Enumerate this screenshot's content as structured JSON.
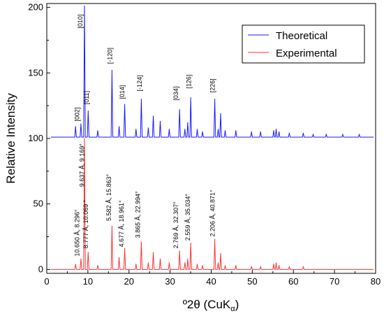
{
  "chart_data": {
    "type": "line",
    "xlabel_main": "º2θ (CuK",
    "xlabel_sub": "α",
    "xlabel_close": ")",
    "ylabel": "Relative Intensity",
    "xlim": [
      0,
      80
    ],
    "ylim": [
      -3,
      203
    ],
    "x_ticks": [
      0,
      10,
      20,
      30,
      40,
      50,
      60,
      70,
      80
    ],
    "y_ticks": [
      0,
      50,
      100,
      150,
      200
    ],
    "grid": false,
    "legend_position": "top-right",
    "series": [
      {
        "name": "Theoretical",
        "color": "#1a1aff",
        "baseline": 101,
        "peaks": [
          {
            "x": 7.0,
            "h": 8
          },
          {
            "x": 8.3,
            "h": 10
          },
          {
            "x": 9.17,
            "h": 100
          },
          {
            "x": 10.07,
            "h": 20
          },
          {
            "x": 12.4,
            "h": 5
          },
          {
            "x": 15.86,
            "h": 51
          },
          {
            "x": 17.6,
            "h": 8
          },
          {
            "x": 18.96,
            "h": 25
          },
          {
            "x": 21.7,
            "h": 6
          },
          {
            "x": 23.0,
            "h": 29
          },
          {
            "x": 24.7,
            "h": 7
          },
          {
            "x": 25.9,
            "h": 16
          },
          {
            "x": 27.6,
            "h": 12
          },
          {
            "x": 29.8,
            "h": 6
          },
          {
            "x": 32.3,
            "h": 21
          },
          {
            "x": 33.6,
            "h": 6
          },
          {
            "x": 34.3,
            "h": 11
          },
          {
            "x": 35.03,
            "h": 30
          },
          {
            "x": 36.6,
            "h": 6
          },
          {
            "x": 37.9,
            "h": 4
          },
          {
            "x": 40.87,
            "h": 29
          },
          {
            "x": 41.7,
            "h": 6
          },
          {
            "x": 42.3,
            "h": 18
          },
          {
            "x": 43.4,
            "h": 5
          },
          {
            "x": 46.0,
            "h": 5
          },
          {
            "x": 49.8,
            "h": 4
          },
          {
            "x": 52.0,
            "h": 4
          },
          {
            "x": 55.2,
            "h": 5
          },
          {
            "x": 55.8,
            "h": 6
          },
          {
            "x": 56.5,
            "h": 4
          },
          {
            "x": 59.0,
            "h": 3
          },
          {
            "x": 62.4,
            "h": 3
          },
          {
            "x": 64.8,
            "h": 2
          },
          {
            "x": 68.0,
            "h": 2
          },
          {
            "x": 72.0,
            "h": 2
          },
          {
            "x": 76.0,
            "h": 2
          }
        ],
        "peak_labels": [
          {
            "x": 8.2,
            "y": 113,
            "text": "[002]"
          },
          {
            "x": 9.0,
            "y": 184,
            "text": "[010]"
          },
          {
            "x": 10.5,
            "y": 126,
            "text": "[011]"
          },
          {
            "x": 16.2,
            "y": 157,
            "text": "[-120]"
          },
          {
            "x": 19.2,
            "y": 130,
            "text": "[014]"
          },
          {
            "x": 23.4,
            "y": 136,
            "text": "[-124]"
          },
          {
            "x": 32.3,
            "y": 129,
            "text": "[034]"
          },
          {
            "x": 35.4,
            "y": 138,
            "text": "[126]"
          },
          {
            "x": 41.2,
            "y": 135,
            "text": "[226]"
          }
        ]
      },
      {
        "name": "Experimental",
        "color": "#ff3333",
        "baseline": 0,
        "peaks": [
          {
            "x": 7.0,
            "h": 4
          },
          {
            "x": 8.3,
            "h": 8
          },
          {
            "x": 9.17,
            "h": 100
          },
          {
            "x": 10.07,
            "h": 13
          },
          {
            "x": 12.4,
            "h": 3
          },
          {
            "x": 15.86,
            "h": 33
          },
          {
            "x": 17.6,
            "h": 9
          },
          {
            "x": 18.96,
            "h": 16
          },
          {
            "x": 21.7,
            "h": 4
          },
          {
            "x": 23.0,
            "h": 21
          },
          {
            "x": 24.7,
            "h": 5
          },
          {
            "x": 25.9,
            "h": 13
          },
          {
            "x": 27.6,
            "h": 8
          },
          {
            "x": 29.8,
            "h": 5
          },
          {
            "x": 32.3,
            "h": 14
          },
          {
            "x": 33.6,
            "h": 5
          },
          {
            "x": 34.3,
            "h": 8
          },
          {
            "x": 35.03,
            "h": 20
          },
          {
            "x": 36.6,
            "h": 4
          },
          {
            "x": 37.9,
            "h": 3
          },
          {
            "x": 40.87,
            "h": 23
          },
          {
            "x": 41.7,
            "h": 5
          },
          {
            "x": 42.3,
            "h": 12
          },
          {
            "x": 43.4,
            "h": 3
          },
          {
            "x": 46.0,
            "h": 3
          },
          {
            "x": 49.8,
            "h": 2
          },
          {
            "x": 52.0,
            "h": 2
          },
          {
            "x": 55.2,
            "h": 4
          },
          {
            "x": 55.8,
            "h": 5
          },
          {
            "x": 56.5,
            "h": 3
          },
          {
            "x": 59.0,
            "h": 2
          },
          {
            "x": 62.4,
            "h": 2
          }
        ],
        "peak_labels": [
          {
            "x": 8.2,
            "y": 10,
            "text": "10.650 Å, 8.296°"
          },
          {
            "x": 9.4,
            "y": 63,
            "text": "9.637 Å, 9.169°"
          },
          {
            "x": 10.4,
            "y": 16,
            "text": "8.777 Å, 10.069 °"
          },
          {
            "x": 16.0,
            "y": 37,
            "text": "5.582 Å, 15.863°"
          },
          {
            "x": 19.0,
            "y": 17,
            "text": "4.677 Å, 18.961°"
          },
          {
            "x": 23.0,
            "y": 24,
            "text": "3.865 Å, 22.994°"
          },
          {
            "x": 32.3,
            "y": 16,
            "text": "2.769 Å, 32.307°"
          },
          {
            "x": 35.2,
            "y": 22,
            "text": "2.559 Å, 35.034°"
          },
          {
            "x": 41.2,
            "y": 25,
            "text": "2.206 Å, 40.871°"
          }
        ]
      }
    ]
  }
}
